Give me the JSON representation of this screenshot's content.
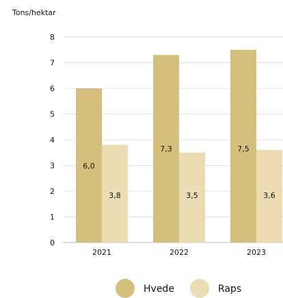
{
  "chart_data": {
    "type": "bar",
    "title": "",
    "xlabel": "",
    "ylabel": "Tons/hektar",
    "categories": [
      "2021",
      "2022",
      "2023"
    ],
    "series": [
      {
        "name": "Hvede",
        "values": [
          6.0,
          7.3,
          7.5
        ],
        "labels": [
          "6,0",
          "7,3",
          "7,5"
        ],
        "color": "#d4bf7d"
      },
      {
        "name": "Raps",
        "values": [
          3.8,
          3.5,
          3.6
        ],
        "labels": [
          "3,8",
          "3,5",
          "3,6"
        ],
        "color": "#ecdcb3"
      }
    ],
    "ylim": [
      0,
      8
    ],
    "yticks": [
      "0",
      "1",
      "2",
      "3",
      "4",
      "5",
      "6",
      "7",
      "8"
    ],
    "grid": true,
    "legend_position": "bottom"
  }
}
